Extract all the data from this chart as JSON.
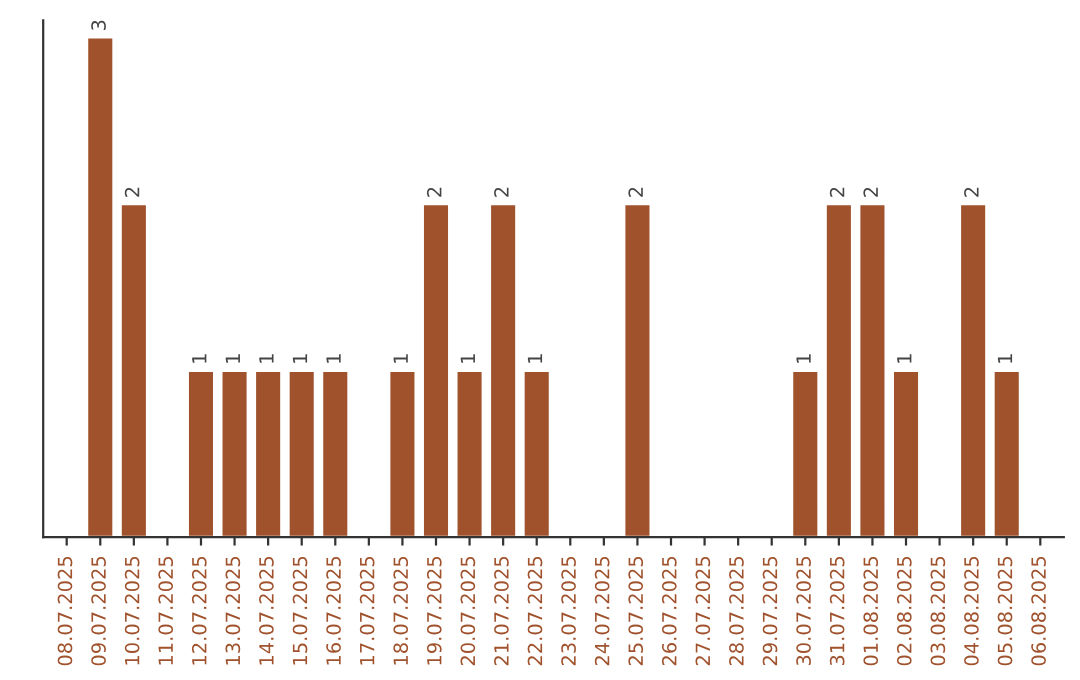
{
  "chart_data": {
    "type": "bar",
    "categories": [
      "08.07.2025",
      "09.07.2025",
      "10.07.2025",
      "11.07.2025",
      "12.07.2025",
      "13.07.2025",
      "14.07.2025",
      "15.07.2025",
      "16.07.2025",
      "17.07.2025",
      "18.07.2025",
      "19.07.2025",
      "20.07.2025",
      "21.07.2025",
      "22.07.2025",
      "23.07.2025",
      "24.07.2025",
      "25.07.2025",
      "26.07.2025",
      "27.07.2025",
      "28.07.2025",
      "29.07.2025",
      "30.07.2025",
      "31.07.2025",
      "01.08.2025",
      "02.08.2025",
      "03.08.2025",
      "04.08.2025",
      "05.08.2025",
      "06.08.2025"
    ],
    "values": [
      null,
      3,
      2,
      null,
      1,
      1,
      1,
      1,
      1,
      null,
      1,
      2,
      1,
      2,
      1,
      null,
      null,
      2,
      null,
      null,
      null,
      null,
      1,
      2,
      2,
      1,
      null,
      2,
      1,
      null
    ],
    "color": "#a0522d",
    "ylim": [
      0,
      3.1
    ],
    "data_labels": true,
    "tick_labels": "x",
    "grid": false,
    "legend": false
  }
}
